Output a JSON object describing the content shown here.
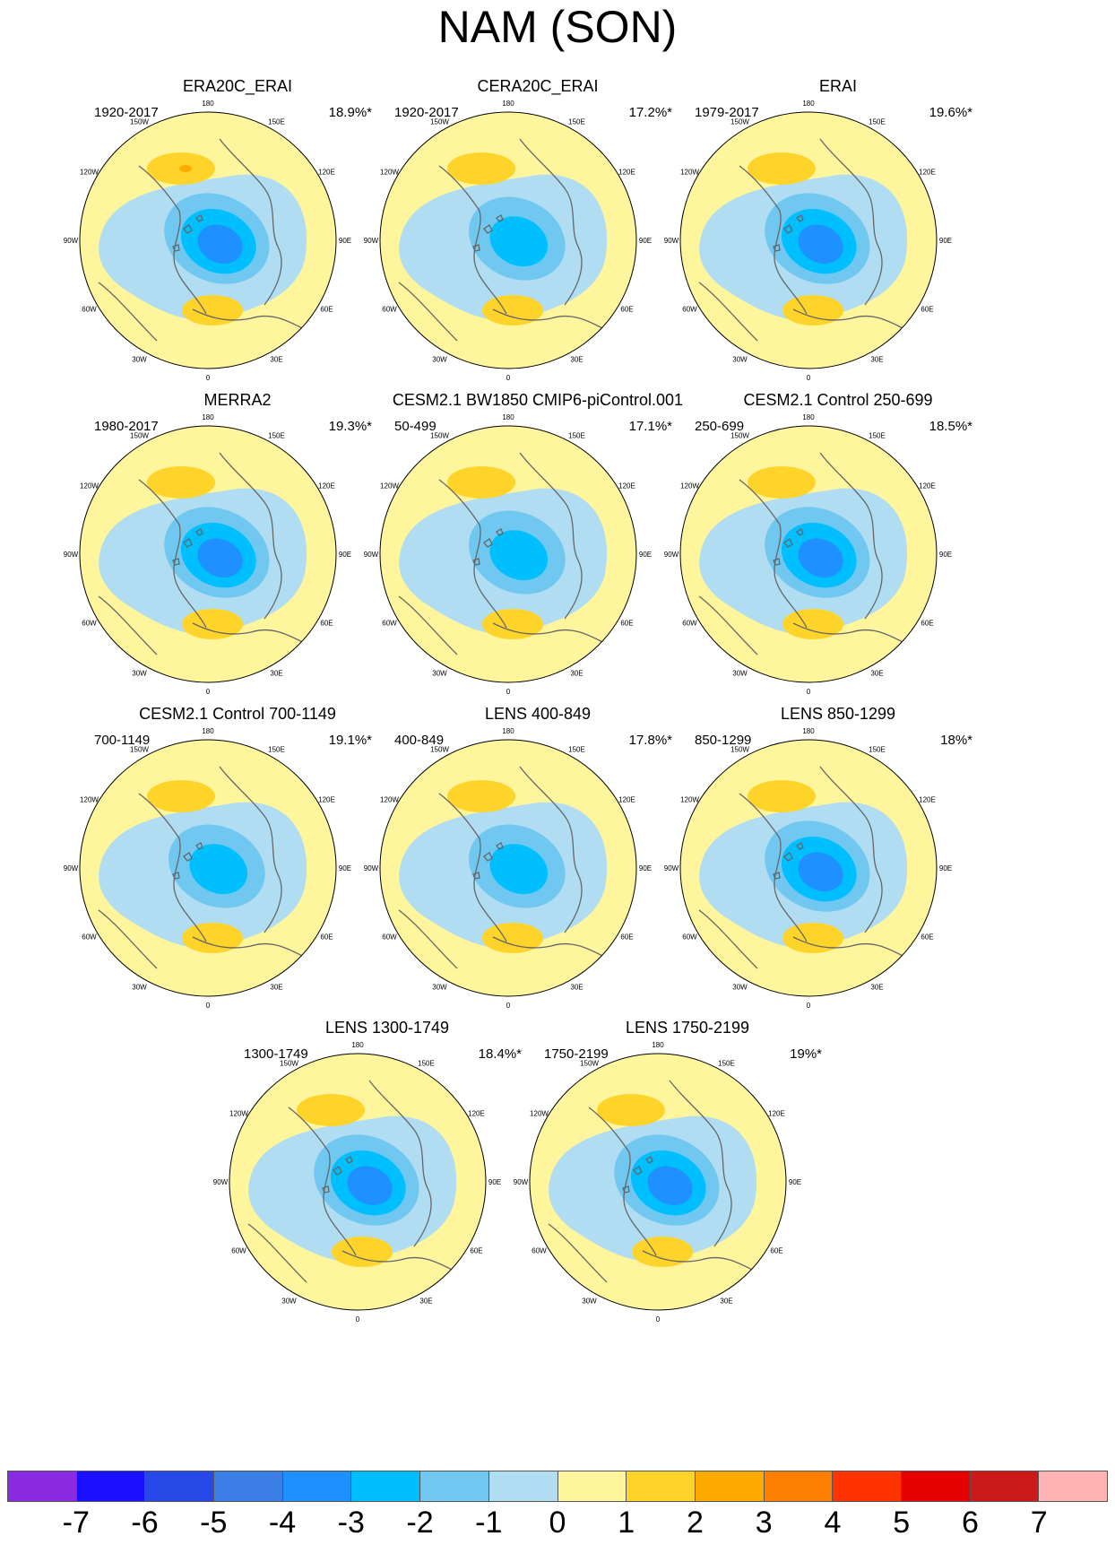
{
  "title": "NAM (SON)",
  "latitude_labels": [
    "180",
    "150E",
    "120E",
    "90E",
    "60E",
    "30E",
    "0",
    "30W",
    "60W",
    "90W",
    "120W",
    "150W"
  ],
  "panels": [
    {
      "title": "ERA20C_ERAI",
      "period": "1920-2017",
      "percent": "18.9%*",
      "neg_peak": -4,
      "pos_max": 3
    },
    {
      "title": "CERA20C_ERAI",
      "period": "1920-2017",
      "percent": "17.2%*",
      "neg_peak": -3,
      "pos_max": 2
    },
    {
      "title": "ERAI",
      "period": "1979-2017",
      "percent": "19.6%*",
      "neg_peak": -4,
      "pos_max": 2
    },
    {
      "title": "MERRA2",
      "period": "1980-2017",
      "percent": "19.3%*",
      "neg_peak": -4,
      "pos_max": 2
    },
    {
      "title": "CESM2.1 BW1850 CMIP6-piControl.001",
      "period": "50-499",
      "percent": "17.1%*",
      "neg_peak": -3,
      "pos_max": 2
    },
    {
      "title": "CESM2.1 Control 250-699",
      "period": "250-699",
      "percent": "18.5%*",
      "neg_peak": -4,
      "pos_max": 2
    },
    {
      "title": "CESM2.1 Control 700-1149",
      "period": "700-1149",
      "percent": "19.1%*",
      "neg_peak": -3,
      "pos_max": 2
    },
    {
      "title": "LENS 400-849",
      "period": "400-849",
      "percent": "17.8%*",
      "neg_peak": -3,
      "pos_max": 2
    },
    {
      "title": "LENS 850-1299",
      "period": "850-1299",
      "percent": "18%*",
      "neg_peak": -4,
      "pos_max": 2
    },
    {
      "title": "LENS 1300-1749",
      "period": "1300-1749",
      "percent": "18.4%*",
      "neg_peak": -4,
      "pos_max": 2
    },
    {
      "title": "LENS 1750-2199",
      "period": "1750-2199",
      "percent": "19%*",
      "neg_peak": -4,
      "pos_max": 2
    }
  ],
  "colorbar": {
    "colors": [
      "#8a2be2",
      "#1a10ff",
      "#2648e6",
      "#3a7ee6",
      "#1e90ff",
      "#00bfff",
      "#70c8f0",
      "#b0ddf2",
      "#fff59d",
      "#ffd42a",
      "#ffaa00",
      "#ff7f00",
      "#ff3300",
      "#e60000",
      "#cc1a1a",
      "#ffb3b3"
    ],
    "labels": [
      "-7",
      "-6",
      "-5",
      "-4",
      "-3",
      "-2",
      "-1",
      "0",
      "1",
      "2",
      "3",
      "4",
      "5",
      "6",
      "7"
    ]
  }
}
